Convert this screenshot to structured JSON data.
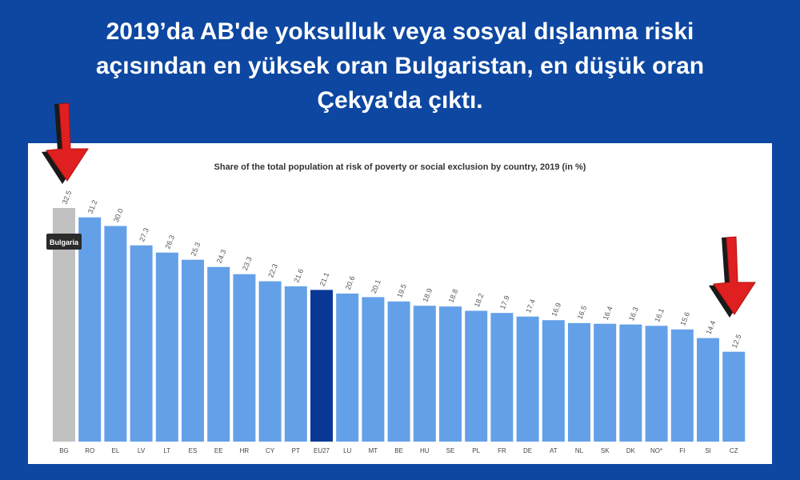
{
  "headline": {
    "line1": "2019’da AB'de yoksulluk veya sosyal dışlanma riski",
    "line2": "açısından en yüksek oran Bulgaristan, en düşük oran",
    "line3": "Çekya'da çıktı."
  },
  "colors": {
    "background": "#0d47a1",
    "bar": "#64a0e8",
    "bar_highlight_eu": "#0a3896",
    "bar_selected": "#c0c0c0",
    "tooltip_bg": "#2b2b2b",
    "arrow": "#e02020"
  },
  "chart_data": {
    "type": "bar",
    "title": "Share of the total population at risk of poverty or social exclusion by country, 2019 (in %)",
    "categories": [
      "BG",
      "RO",
      "EL",
      "LV",
      "LT",
      "ES",
      "EE",
      "HR",
      "CY",
      "PT",
      "EU27",
      "LU",
      "MT",
      "BE",
      "HU",
      "SE",
      "PL",
      "FR",
      "DE",
      "AT",
      "NL",
      "SK",
      "DK",
      "NO*",
      "FI",
      "SI",
      "CZ"
    ],
    "values": [
      32.5,
      31.2,
      30.0,
      27.3,
      26.3,
      25.3,
      24.3,
      23.3,
      22.3,
      21.6,
      21.1,
      20.6,
      20.1,
      19.5,
      18.9,
      18.8,
      18.2,
      17.9,
      17.4,
      16.9,
      16.5,
      16.4,
      16.3,
      16.1,
      15.6,
      14.4,
      12.5
    ],
    "value_labels": [
      "32.5",
      "31.2",
      "30.0",
      "27.3",
      "26.3",
      "25.3",
      "24.3",
      "23.3",
      "22.3",
      "21.6",
      "21.1",
      "20.6",
      "20.1",
      "19.5",
      "18.9",
      "18.8",
      "18.2",
      "17.9",
      "17.4",
      "16.9",
      "16.5",
      "16.4",
      "16.3",
      "16.1",
      "15.6",
      "14.4",
      "12.5"
    ],
    "highlight_category": "EU27",
    "selected_category": "BG",
    "tooltip": "Bulgaria",
    "ylim": [
      0,
      32.5
    ],
    "grid": false,
    "legend": "none"
  },
  "annotations": {
    "left_arrow_icon": "red-down-arrow-icon",
    "right_arrow_icon": "red-down-arrow-icon"
  }
}
